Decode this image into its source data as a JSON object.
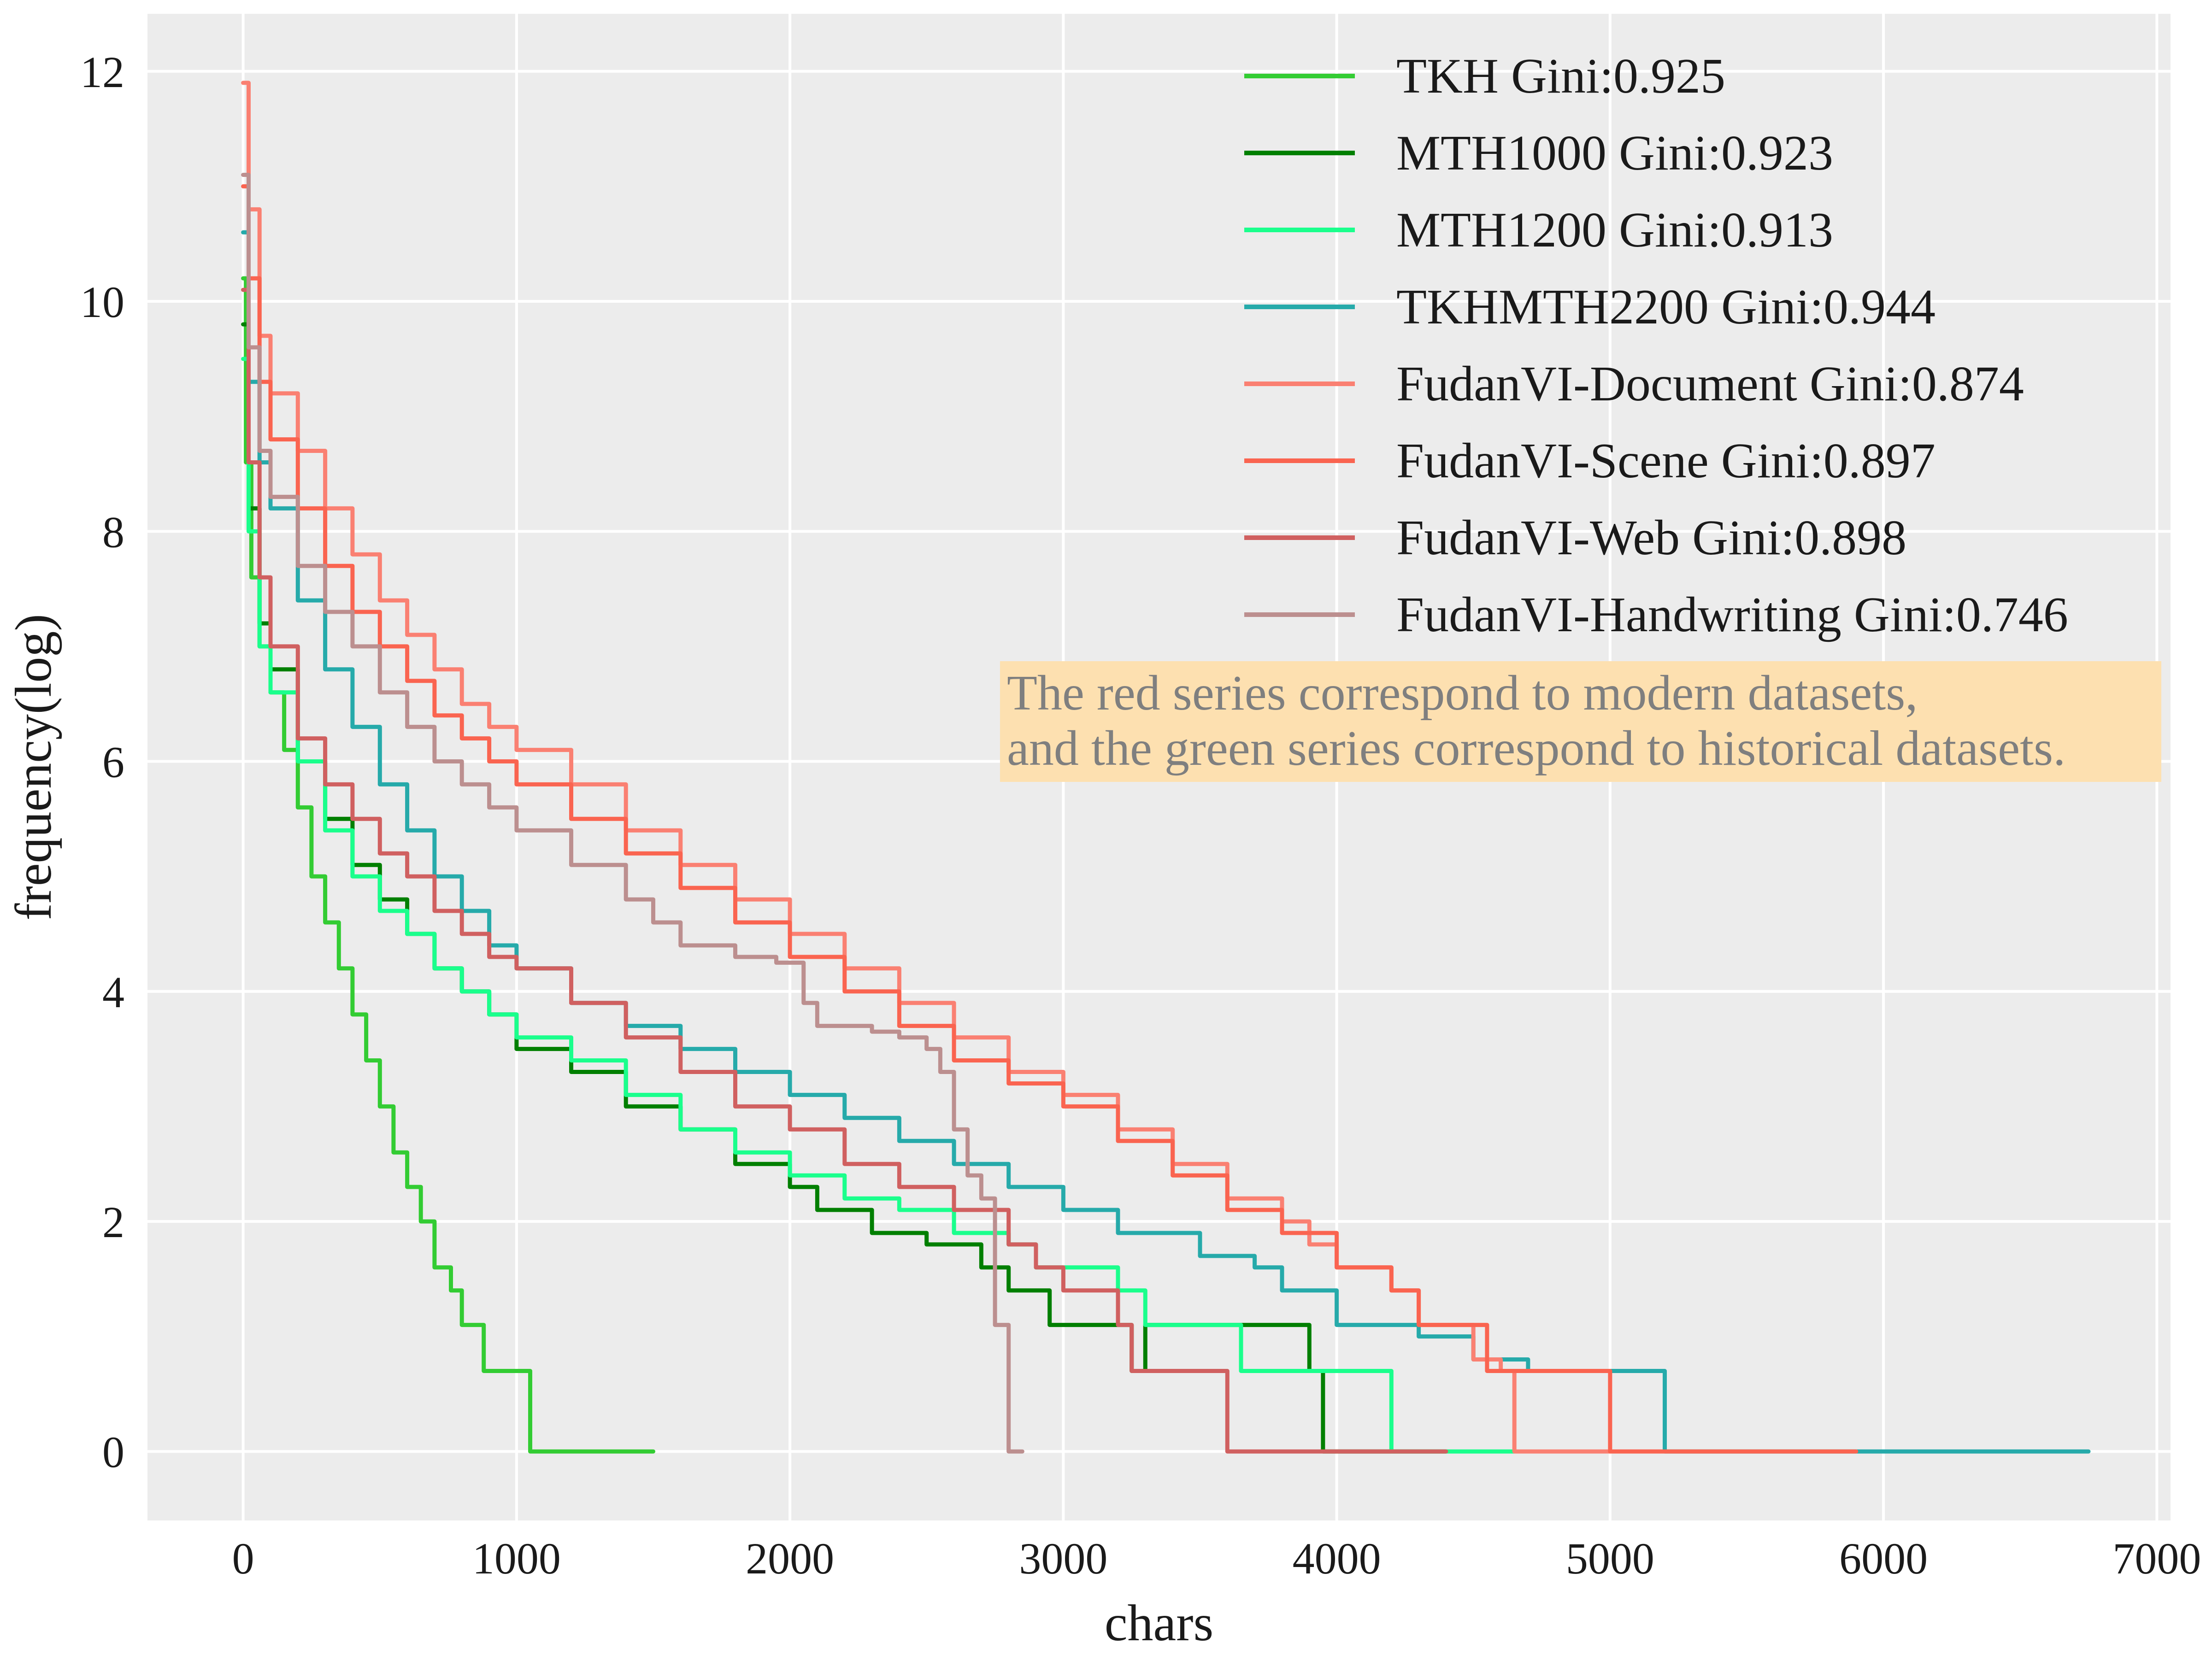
{
  "chart_data": {
    "type": "line",
    "title": "",
    "xlabel": "chars",
    "ylabel": "frequency(log)",
    "xlim": [
      -350,
      7050
    ],
    "ylim": [
      -0.6,
      12.5
    ],
    "xticks": [
      0,
      1000,
      2000,
      3000,
      4000,
      5000,
      6000,
      7000
    ],
    "yticks": [
      0,
      2,
      4,
      6,
      8,
      10,
      12
    ],
    "grid": true,
    "legend_position": "top-right",
    "annotation": {
      "lines": [
        "The red series correspond to modern datasets,",
        "and the green series correspond to historical datasets."
      ],
      "background": "#fde0b0",
      "text_color": "#7f7f7f"
    },
    "series": [
      {
        "name": "TKH Gini:0.925",
        "color": "#33cc33",
        "points": [
          [
            0,
            10.2
          ],
          [
            10,
            8.6
          ],
          [
            30,
            7.6
          ],
          [
            60,
            7.0
          ],
          [
            100,
            6.6
          ],
          [
            150,
            6.1
          ],
          [
            200,
            5.6
          ],
          [
            250,
            5.0
          ],
          [
            300,
            4.6
          ],
          [
            350,
            4.2
          ],
          [
            400,
            3.8
          ],
          [
            450,
            3.4
          ],
          [
            500,
            3.0
          ],
          [
            550,
            2.6
          ],
          [
            600,
            2.3
          ],
          [
            650,
            2.0
          ],
          [
            700,
            1.6
          ],
          [
            760,
            1.4
          ],
          [
            800,
            1.1
          ],
          [
            880,
            0.7
          ],
          [
            1050,
            0.0
          ],
          [
            1500,
            0.0
          ]
        ]
      },
      {
        "name": "MTH1000 Gini:0.923",
        "color": "#007f00",
        "points": [
          [
            0,
            9.8
          ],
          [
            20,
            8.2
          ],
          [
            60,
            7.2
          ],
          [
            100,
            6.8
          ],
          [
            200,
            6.0
          ],
          [
            300,
            5.5
          ],
          [
            400,
            5.1
          ],
          [
            500,
            4.8
          ],
          [
            600,
            4.5
          ],
          [
            700,
            4.2
          ],
          [
            800,
            4.0
          ],
          [
            900,
            3.8
          ],
          [
            1000,
            3.5
          ],
          [
            1200,
            3.3
          ],
          [
            1400,
            3.0
          ],
          [
            1600,
            2.8
          ],
          [
            1800,
            2.5
          ],
          [
            2000,
            2.3
          ],
          [
            2100,
            2.1
          ],
          [
            2300,
            1.9
          ],
          [
            2500,
            1.8
          ],
          [
            2700,
            1.6
          ],
          [
            2800,
            1.4
          ],
          [
            2950,
            1.1
          ],
          [
            3250,
            0.7
          ],
          [
            3300,
            1.1
          ],
          [
            3900,
            0.7
          ],
          [
            3950,
            0.0
          ],
          [
            4400,
            0.0
          ]
        ]
      },
      {
        "name": "MTH1200 Gini:0.913",
        "color": "#1aff8c",
        "points": [
          [
            0,
            9.5
          ],
          [
            20,
            8.0
          ],
          [
            60,
            7.0
          ],
          [
            100,
            6.6
          ],
          [
            200,
            6.0
          ],
          [
            300,
            5.4
          ],
          [
            400,
            5.0
          ],
          [
            500,
            4.7
          ],
          [
            600,
            4.5
          ],
          [
            700,
            4.2
          ],
          [
            800,
            4.0
          ],
          [
            900,
            3.8
          ],
          [
            1000,
            3.6
          ],
          [
            1200,
            3.4
          ],
          [
            1400,
            3.1
          ],
          [
            1600,
            2.8
          ],
          [
            1800,
            2.6
          ],
          [
            2000,
            2.4
          ],
          [
            2200,
            2.2
          ],
          [
            2400,
            2.1
          ],
          [
            2600,
            1.9
          ],
          [
            2800,
            1.8
          ],
          [
            2900,
            1.6
          ],
          [
            3200,
            1.4
          ],
          [
            3300,
            1.1
          ],
          [
            3650,
            0.7
          ],
          [
            4200,
            0.0
          ],
          [
            4650,
            0.0
          ]
        ]
      },
      {
        "name": "TKHMTH2200 Gini:0.944",
        "color": "#26aaaa",
        "points": [
          [
            0,
            10.6
          ],
          [
            20,
            9.3
          ],
          [
            60,
            8.6
          ],
          [
            100,
            8.2
          ],
          [
            200,
            7.4
          ],
          [
            300,
            6.8
          ],
          [
            400,
            6.3
          ],
          [
            500,
            5.8
          ],
          [
            600,
            5.4
          ],
          [
            700,
            5.0
          ],
          [
            800,
            4.7
          ],
          [
            900,
            4.4
          ],
          [
            1000,
            4.2
          ],
          [
            1200,
            3.9
          ],
          [
            1400,
            3.7
          ],
          [
            1600,
            3.5
          ],
          [
            1800,
            3.3
          ],
          [
            2000,
            3.1
          ],
          [
            2200,
            2.9
          ],
          [
            2400,
            2.7
          ],
          [
            2600,
            2.5
          ],
          [
            2800,
            2.3
          ],
          [
            3000,
            2.1
          ],
          [
            3200,
            1.9
          ],
          [
            3500,
            1.7
          ],
          [
            3700,
            1.6
          ],
          [
            3800,
            1.4
          ],
          [
            4000,
            1.1
          ],
          [
            4300,
            1.0
          ],
          [
            4500,
            0.8
          ],
          [
            4700,
            0.7
          ],
          [
            5200,
            0.0
          ],
          [
            6750,
            0.0
          ]
        ]
      },
      {
        "name": "FudanVI-Document Gini:0.874",
        "color": "#fa8072",
        "points": [
          [
            0,
            11.9
          ],
          [
            20,
            10.8
          ],
          [
            60,
            9.7
          ],
          [
            100,
            9.2
          ],
          [
            200,
            8.7
          ],
          [
            300,
            8.2
          ],
          [
            400,
            7.8
          ],
          [
            500,
            7.4
          ],
          [
            600,
            7.1
          ],
          [
            700,
            6.8
          ],
          [
            800,
            6.5
          ],
          [
            900,
            6.3
          ],
          [
            1000,
            6.1
          ],
          [
            1200,
            5.8
          ],
          [
            1400,
            5.4
          ],
          [
            1600,
            5.1
          ],
          [
            1800,
            4.8
          ],
          [
            2000,
            4.5
          ],
          [
            2200,
            4.2
          ],
          [
            2400,
            3.9
          ],
          [
            2600,
            3.6
          ],
          [
            2800,
            3.3
          ],
          [
            3000,
            3.1
          ],
          [
            3200,
            2.8
          ],
          [
            3400,
            2.5
          ],
          [
            3600,
            2.2
          ],
          [
            3800,
            2.0
          ],
          [
            3900,
            1.8
          ],
          [
            4000,
            1.6
          ],
          [
            4200,
            1.4
          ],
          [
            4300,
            1.1
          ],
          [
            4500,
            0.8
          ],
          [
            4600,
            0.7
          ],
          [
            4650,
            0.0
          ],
          [
            5000,
            0.0
          ]
        ]
      },
      {
        "name": "FudanVI-Scene Gini:0.897",
        "color": "#fa6450",
        "points": [
          [
            0,
            11.0
          ],
          [
            20,
            10.2
          ],
          [
            60,
            9.3
          ],
          [
            100,
            8.8
          ],
          [
            200,
            8.2
          ],
          [
            300,
            7.7
          ],
          [
            400,
            7.3
          ],
          [
            500,
            7.0
          ],
          [
            600,
            6.7
          ],
          [
            700,
            6.4
          ],
          [
            800,
            6.2
          ],
          [
            900,
            6.0
          ],
          [
            1000,
            5.8
          ],
          [
            1200,
            5.5
          ],
          [
            1400,
            5.2
          ],
          [
            1600,
            4.9
          ],
          [
            1800,
            4.6
          ],
          [
            2000,
            4.3
          ],
          [
            2200,
            4.0
          ],
          [
            2400,
            3.7
          ],
          [
            2600,
            3.4
          ],
          [
            2800,
            3.2
          ],
          [
            3000,
            3.0
          ],
          [
            3200,
            2.7
          ],
          [
            3400,
            2.4
          ],
          [
            3600,
            2.1
          ],
          [
            3800,
            1.9
          ],
          [
            4000,
            1.6
          ],
          [
            4200,
            1.4
          ],
          [
            4300,
            1.1
          ],
          [
            4550,
            0.7
          ],
          [
            5000,
            0.0
          ],
          [
            5900,
            0.0
          ]
        ]
      },
      {
        "name": "FudanVI-Web Gini:0.898",
        "color": "#d06060",
        "points": [
          [
            0,
            10.1
          ],
          [
            20,
            8.6
          ],
          [
            60,
            7.6
          ],
          [
            100,
            7.0
          ],
          [
            200,
            6.2
          ],
          [
            300,
            5.8
          ],
          [
            400,
            5.5
          ],
          [
            500,
            5.2
          ],
          [
            600,
            5.0
          ],
          [
            700,
            4.7
          ],
          [
            800,
            4.5
          ],
          [
            900,
            4.3
          ],
          [
            1000,
            4.2
          ],
          [
            1200,
            3.9
          ],
          [
            1400,
            3.6
          ],
          [
            1600,
            3.3
          ],
          [
            1800,
            3.0
          ],
          [
            2000,
            2.8
          ],
          [
            2200,
            2.5
          ],
          [
            2400,
            2.3
          ],
          [
            2600,
            2.1
          ],
          [
            2800,
            1.8
          ],
          [
            2900,
            1.6
          ],
          [
            3000,
            1.4
          ],
          [
            3200,
            1.1
          ],
          [
            3250,
            0.7
          ],
          [
            3600,
            0.0
          ],
          [
            4400,
            0.0
          ]
        ]
      },
      {
        "name": "FudanVI-Handwriting Gini:0.746",
        "color": "#bc8f8f",
        "points": [
          [
            0,
            11.1
          ],
          [
            20,
            9.6
          ],
          [
            60,
            8.7
          ],
          [
            100,
            8.3
          ],
          [
            200,
            7.7
          ],
          [
            300,
            7.3
          ],
          [
            400,
            7.0
          ],
          [
            500,
            6.6
          ],
          [
            600,
            6.3
          ],
          [
            700,
            6.0
          ],
          [
            800,
            5.8
          ],
          [
            900,
            5.6
          ],
          [
            1000,
            5.4
          ],
          [
            1200,
            5.1
          ],
          [
            1400,
            4.8
          ],
          [
            1500,
            4.6
          ],
          [
            1600,
            4.4
          ],
          [
            1800,
            4.3
          ],
          [
            1950,
            4.25
          ],
          [
            2050,
            3.9
          ],
          [
            2100,
            3.7
          ],
          [
            2300,
            3.65
          ],
          [
            2400,
            3.6
          ],
          [
            2500,
            3.5
          ],
          [
            2550,
            3.3
          ],
          [
            2600,
            2.8
          ],
          [
            2650,
            2.4
          ],
          [
            2700,
            2.2
          ],
          [
            2750,
            1.1
          ],
          [
            2800,
            0.0
          ],
          [
            2850,
            0.0
          ]
        ]
      }
    ]
  }
}
